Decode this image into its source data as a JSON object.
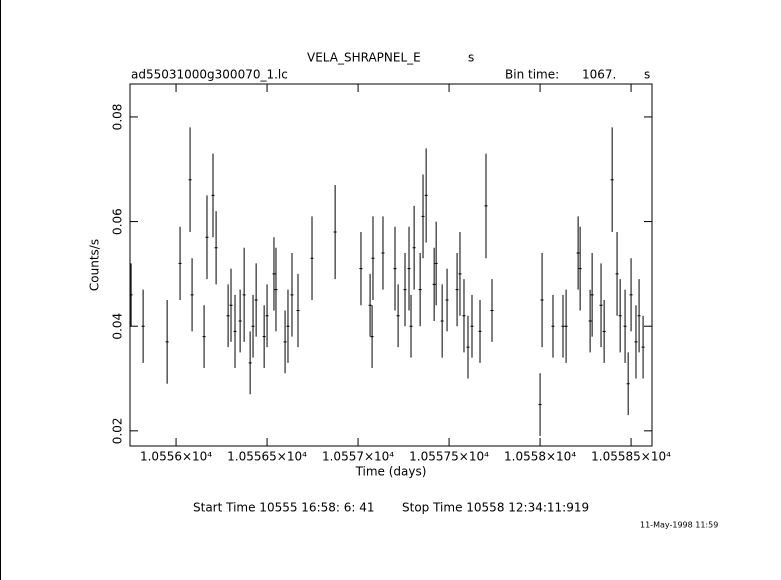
{
  "chart_data": {
    "type": "errorbar",
    "title": "VELA_SHRAPNEL_E",
    "title_unit": "s",
    "file_name": "ad55031000g300070_1.lc",
    "bin_time_label": "Bin time:",
    "bin_time": "1067.",
    "bin_time_unit": "s",
    "y_label": "Counts/s",
    "x_label": "Time (days)",
    "start_time": "Start Time 10555 16:58: 6: 41",
    "stop_time": "Stop Time 10558 12:34:11:919",
    "date_stamp": "11-May-1998 11:59",
    "color": "#000000",
    "xlim": [
      10555.747,
      10558.615
    ],
    "ylim": [
      0.0171,
      0.0863
    ],
    "xticks": [
      {
        "value": 10556,
        "label": "1.0556×10⁴"
      },
      {
        "value": 10556.5,
        "label": "1.05565×10⁴"
      },
      {
        "value": 10557,
        "label": "1.0557×10⁴"
      },
      {
        "value": 10557.5,
        "label": "1.05575×10⁴"
      },
      {
        "value": 10558,
        "label": "1.0558×10⁴"
      },
      {
        "value": 10558.5,
        "label": "1.05585×10⁴"
      }
    ],
    "yticks": [
      0.02,
      0.04,
      0.06,
      0.08
    ],
    "x": [
      10555.753,
      10555.819,
      10555.951,
      10556.022,
      10556.077,
      10556.088,
      10556.154,
      10556.17,
      10556.203,
      10556.22,
      10556.286,
      10556.302,
      10556.324,
      10556.352,
      10556.374,
      10556.407,
      10556.423,
      10556.44,
      10556.484,
      10556.5,
      10556.538,
      10556.549,
      10556.599,
      10556.615,
      10556.637,
      10556.67,
      10556.747,
      10556.874,
      10557.016,
      10557.066,
      10557.077,
      10557.082,
      10557.137,
      10557.203,
      10557.22,
      10557.258,
      10557.28,
      10557.291,
      10557.308,
      10557.341,
      10557.357,
      10557.374,
      10557.418,
      10557.429,
      10557.462,
      10557.489,
      10557.544,
      10557.56,
      10557.582,
      10557.604,
      10557.626,
      10557.67,
      10557.703,
      10557.736,
      10558.0,
      10558.011,
      10558.071,
      10558.126,
      10558.143,
      10558.209,
      10558.22,
      10558.275,
      10558.286,
      10558.335,
      10558.352,
      10558.396,
      10558.423,
      10558.44,
      10558.467,
      10558.484,
      10558.5,
      10558.527,
      10558.544,
      10558.566
    ],
    "values": [
      0.046,
      0.04,
      0.037,
      0.052,
      0.068,
      0.046,
      0.038,
      0.057,
      0.065,
      0.055,
      0.042,
      0.044,
      0.039,
      0.041,
      0.046,
      0.033,
      0.04,
      0.045,
      0.038,
      0.042,
      0.05,
      0.047,
      0.037,
      0.04,
      0.046,
      0.043,
      0.053,
      0.058,
      0.051,
      0.044,
      0.038,
      0.053,
      0.054,
      0.051,
      0.042,
      0.047,
      0.051,
      0.04,
      0.055,
      0.047,
      0.061,
      0.065,
      0.048,
      0.052,
      0.041,
      0.045,
      0.047,
      0.05,
      0.042,
      0.036,
      0.04,
      0.039,
      0.063,
      0.043,
      0.025,
      0.045,
      0.04,
      0.04,
      0.04,
      0.054,
      0.051,
      0.041,
      0.046,
      0.044,
      0.039,
      0.068,
      0.05,
      0.042,
      0.04,
      0.029,
      0.046,
      0.037,
      0.042,
      0.036
    ],
    "errors": [
      0.006,
      0.007,
      0.008,
      0.007,
      0.01,
      0.007,
      0.006,
      0.008,
      0.008,
      0.007,
      0.006,
      0.007,
      0.007,
      0.006,
      0.009,
      0.006,
      0.006,
      0.007,
      0.006,
      0.006,
      0.007,
      0.008,
      0.006,
      0.007,
      0.008,
      0.007,
      0.008,
      0.009,
      0.007,
      0.006,
      0.006,
      0.008,
      0.007,
      0.008,
      0.006,
      0.007,
      0.008,
      0.006,
      0.008,
      0.007,
      0.008,
      0.009,
      0.007,
      0.008,
      0.007,
      0.006,
      0.007,
      0.008,
      0.007,
      0.006,
      0.006,
      0.006,
      0.01,
      0.006,
      0.006,
      0.009,
      0.006,
      0.006,
      0.007,
      0.007,
      0.008,
      0.006,
      0.008,
      0.008,
      0.006,
      0.01,
      0.008,
      0.007,
      0.007,
      0.006,
      0.007,
      0.007,
      0.007,
      0.006
    ]
  }
}
